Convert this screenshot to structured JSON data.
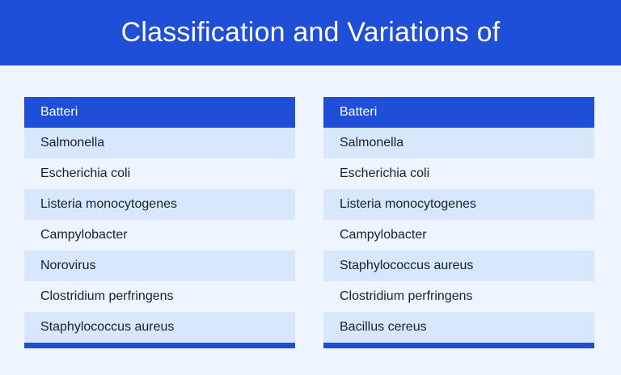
{
  "title": "Classification and Variations of",
  "colors": {
    "accent": "#1f4fd6",
    "row_shade": "#d9e7fd",
    "background": "#eef5fe"
  },
  "tables": [
    {
      "header": "Batteri",
      "rows": [
        "Salmonella",
        "Escherichia coli",
        "Listeria monocytogenes",
        "Campylobacter",
        "Norovirus",
        "Clostridium perfringens",
        "Staphylococcus aureus"
      ]
    },
    {
      "header": "Batteri",
      "rows": [
        "Salmonella",
        "Escherichia coli",
        "Listeria monocytogenes",
        "Campylobacter",
        "Staphylococcus aureus",
        "Clostridium perfringens",
        "Bacillus cereus"
      ]
    }
  ]
}
